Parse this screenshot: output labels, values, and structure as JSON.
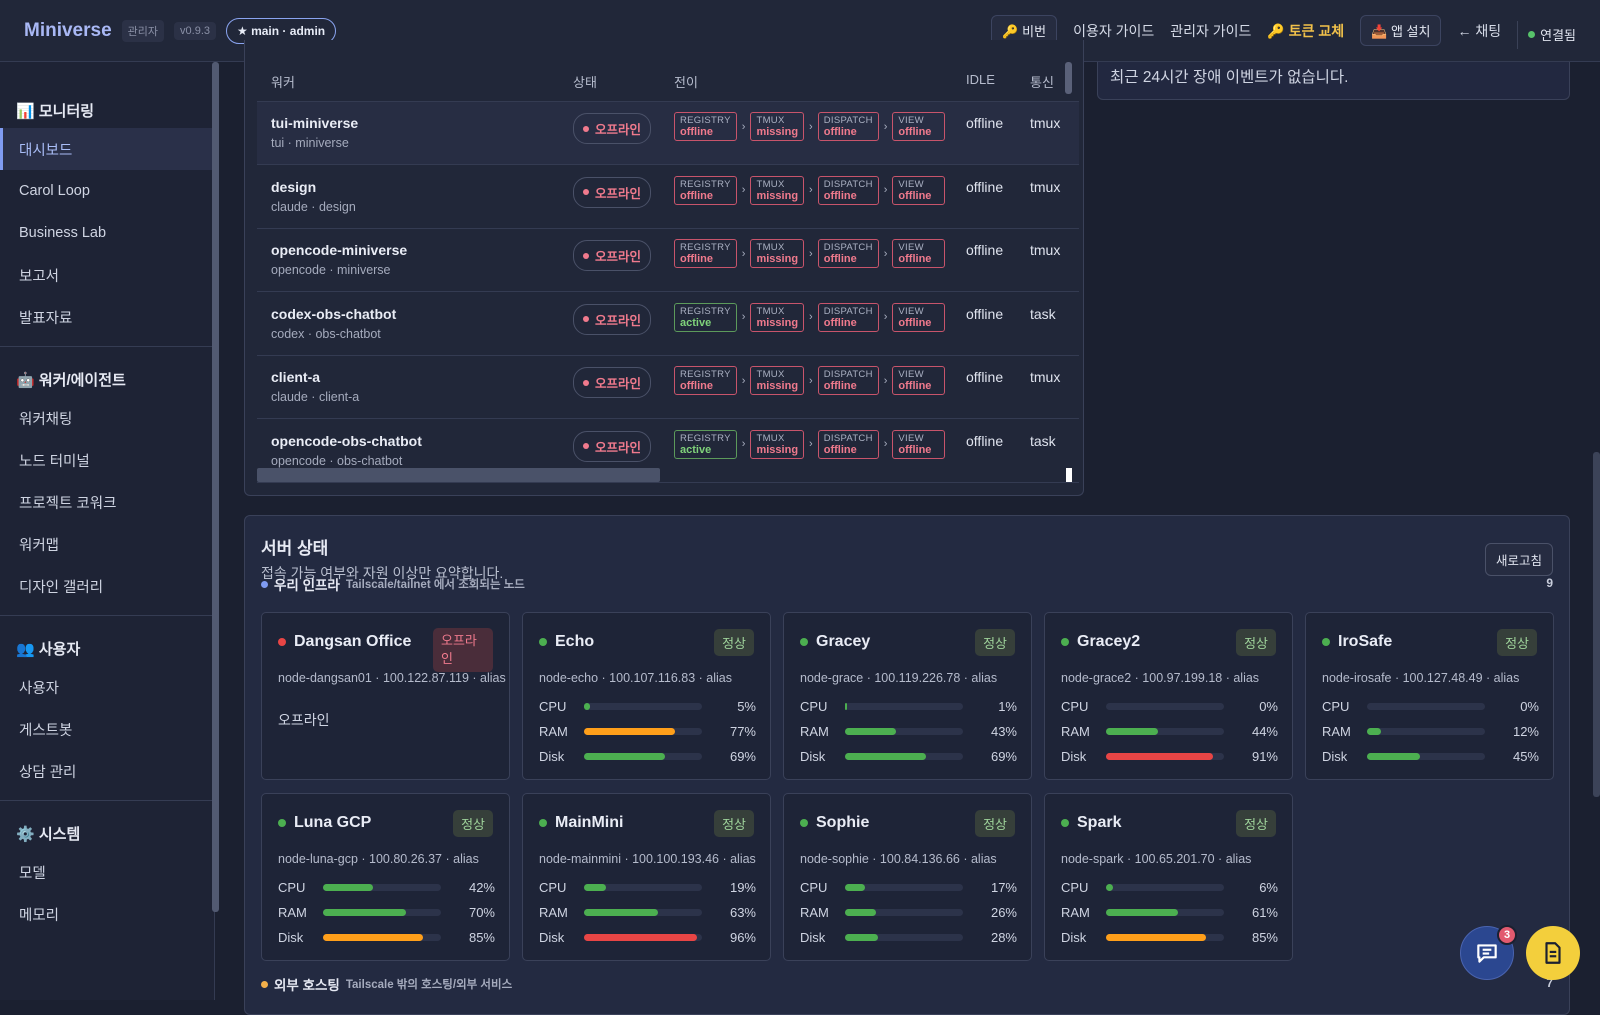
{
  "header": {
    "brand": "Miniverse",
    "role": "관리자",
    "version": "v0.9.3",
    "branch_button": "★ main · admin",
    "secret_button": "🔑 비번",
    "user_guide": "이용자 가이드",
    "admin_guide": "관리자 가이드",
    "token_swap": "🔑 토큰 교체",
    "install_app": "📥 앱 설치",
    "chat_link": "← 채팅",
    "connection": "연결됨"
  },
  "sidebar": {
    "sections": [
      {
        "title": "📊 모니터링",
        "items": [
          "대시보드",
          "Carol Loop",
          "Business Lab",
          "보고서",
          "발표자료"
        ]
      },
      {
        "title": "🤖 워커/에이전트",
        "items": [
          "워커채팅",
          "노드 터미널",
          "프로젝트 코워크",
          "워커맵",
          "디자인 갤러리"
        ]
      },
      {
        "title": "👥 사용자",
        "items": [
          "사용자",
          "게스트봇",
          "상담 관리"
        ]
      },
      {
        "title": "⚙️ 시스템",
        "items": [
          "모델",
          "메모리"
        ]
      }
    ],
    "active_item": "대시보드"
  },
  "workers": {
    "columns": {
      "worker": "워커",
      "status": "상태",
      "transition": "전이",
      "idle": "IDLE",
      "comm": "통신"
    },
    "status_label": "오프라인",
    "stage_names": [
      "REGISTRY",
      "TMUX",
      "DISPATCH",
      "VIEW"
    ],
    "rows": [
      {
        "name": "tui-miniverse",
        "sub": "tui · miniverse",
        "stages": [
          "offline",
          "missing",
          "offline",
          "offline"
        ],
        "idle": "offline",
        "comm": "tmux"
      },
      {
        "name": "design",
        "sub": "claude · design",
        "stages": [
          "offline",
          "missing",
          "offline",
          "offline"
        ],
        "idle": "offline",
        "comm": "tmux"
      },
      {
        "name": "opencode-miniverse",
        "sub": "opencode · miniverse",
        "stages": [
          "offline",
          "missing",
          "offline",
          "offline"
        ],
        "idle": "offline",
        "comm": "tmux"
      },
      {
        "name": "codex-obs-chatbot",
        "sub": "codex · obs-chatbot",
        "stages": [
          "active",
          "missing",
          "offline",
          "offline"
        ],
        "idle": "offline",
        "comm": "task"
      },
      {
        "name": "client-a",
        "sub": "claude · client-a",
        "stages": [
          "offline",
          "missing",
          "offline",
          "offline"
        ],
        "idle": "offline",
        "comm": "tmux"
      },
      {
        "name": "opencode-obs-chatbot",
        "sub": "opencode · obs-chatbot",
        "stages": [
          "active",
          "missing",
          "offline",
          "offline"
        ],
        "idle": "offline",
        "comm": "task"
      }
    ]
  },
  "events": {
    "empty_text": "최근 24시간 장애 이벤트가 없습니다."
  },
  "servers": {
    "title": "서버 상태",
    "description": "접속 가능 여부와 자원 이상만 요약합니다.",
    "refresh_label": "새로고침",
    "metric_labels": [
      "CPU",
      "RAM",
      "Disk"
    ],
    "groups": [
      {
        "name": "우리 인프라",
        "note": "Tailscale/tailnet 에서 조회되는 노드",
        "count": "9",
        "color": "#7f9bf1",
        "nodes": [
          {
            "name": "Dangsan Office",
            "status": "오프라인",
            "online": false,
            "node": "node-dangsan01 · 100.122.87.119 · alias",
            "offline_text": "오프라인"
          },
          {
            "name": "Echo",
            "status": "정상",
            "online": true,
            "node": "node-echo · 100.107.116.83 · alias",
            "cpu": 5,
            "ram": 77,
            "disk": 69
          },
          {
            "name": "Gracey",
            "status": "정상",
            "online": true,
            "node": "node-grace · 100.119.226.78 · alias",
            "cpu": 1,
            "ram": 43,
            "disk": 69
          },
          {
            "name": "Gracey2",
            "status": "정상",
            "online": true,
            "node": "node-grace2 · 100.97.199.18 · alias",
            "cpu": 0,
            "ram": 44,
            "disk": 91
          },
          {
            "name": "IroSafe",
            "status": "정상",
            "online": true,
            "node": "node-irosafe · 100.127.48.49 · alias",
            "cpu": 0,
            "ram": 12,
            "disk": 45
          },
          {
            "name": "Luna GCP",
            "status": "정상",
            "online": true,
            "node": "node-luna-gcp · 100.80.26.37 · alias",
            "cpu": 42,
            "ram": 70,
            "disk": 85
          },
          {
            "name": "MainMini",
            "status": "정상",
            "online": true,
            "node": "node-mainmini · 100.100.193.46 · alias",
            "cpu": 19,
            "ram": 63,
            "disk": 96
          },
          {
            "name": "Sophie",
            "status": "정상",
            "online": true,
            "node": "node-sophie · 100.84.136.66 · alias",
            "cpu": 17,
            "ram": 26,
            "disk": 28
          },
          {
            "name": "Spark",
            "status": "정상",
            "online": true,
            "node": "node-spark · 100.65.201.70 · alias",
            "cpu": 6,
            "ram": 61,
            "disk": 85
          }
        ]
      },
      {
        "name": "외부 호스팅",
        "note": "Tailscale 밖의 호스팅/외부 서비스",
        "count": "7",
        "color": "#f3b04a",
        "nodes": []
      }
    ]
  },
  "colors": {
    "ok": "#4caf50",
    "warn": "#ff9f1a",
    "danger": "#e84545",
    "offline": "#e84545"
  },
  "fab": {
    "chat_badge": "3",
    "chat_icon": "chat-bubble-icon",
    "doc_icon": "document-icon"
  }
}
